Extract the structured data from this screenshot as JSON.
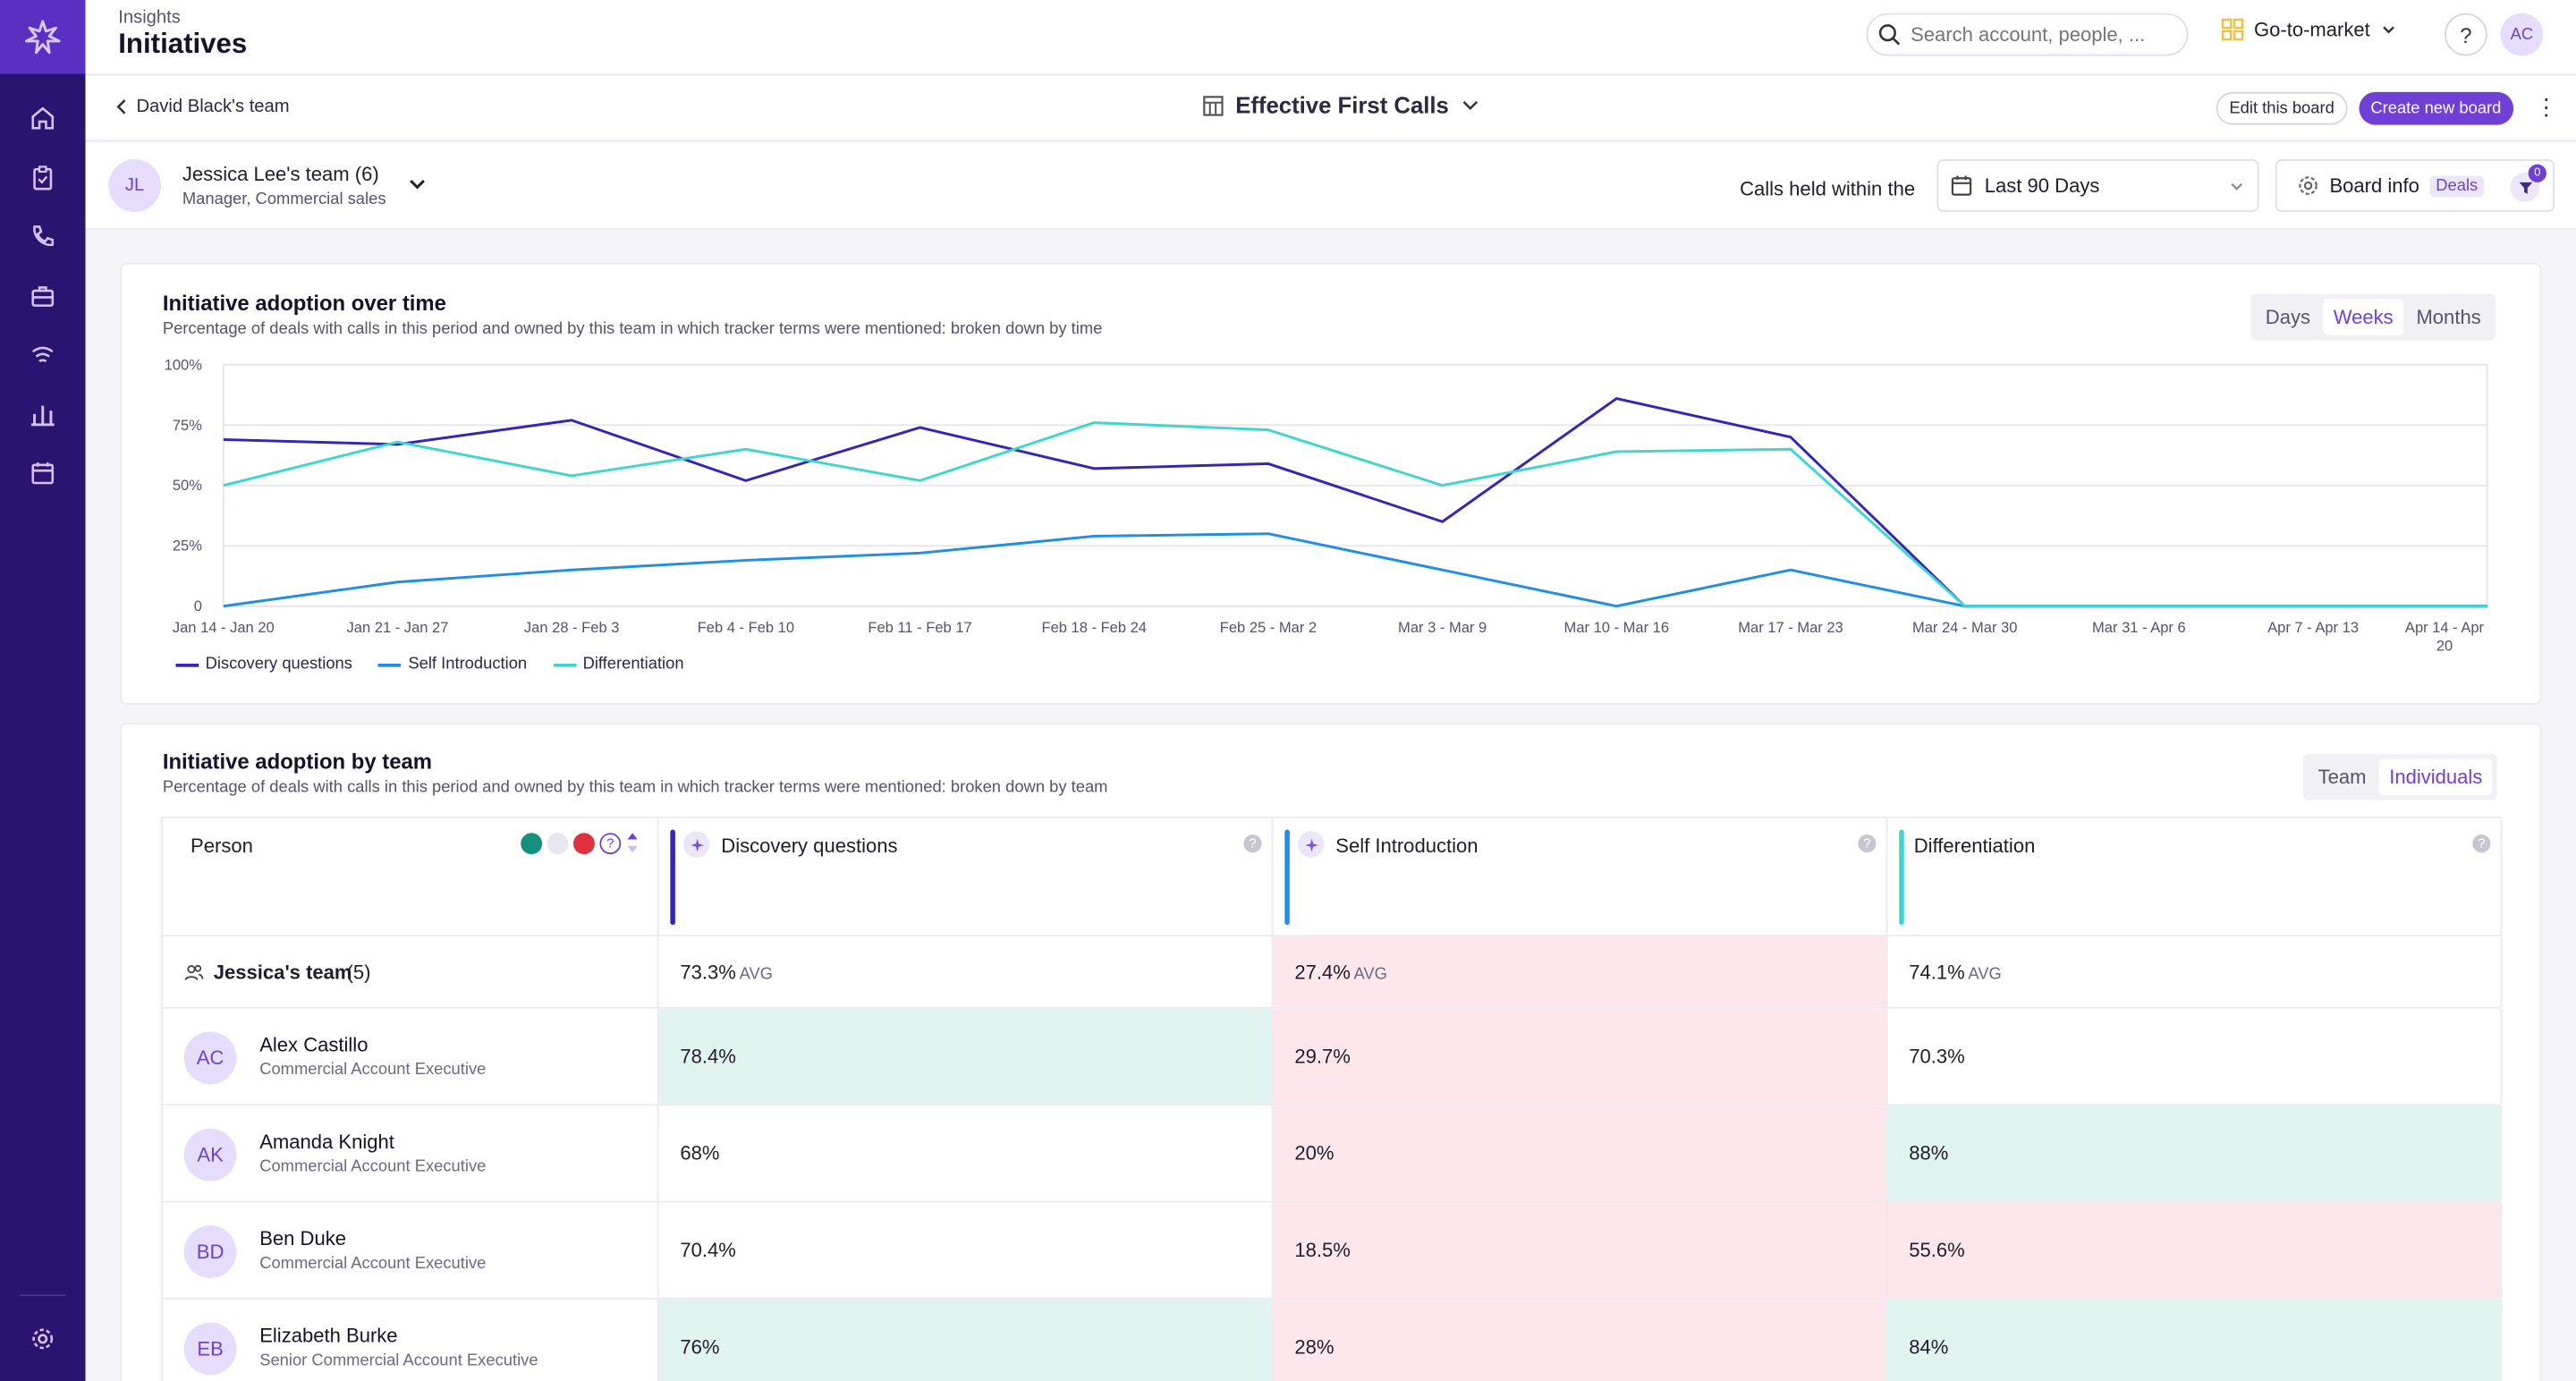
{
  "header": {
    "breadcrumb": "Insights",
    "title": "Initiatives",
    "search_placeholder": "Search account, people, ...",
    "workspace": "Go-to-market",
    "help": "?",
    "user_initials": "AC"
  },
  "sidebar": {
    "items": [
      "home-icon",
      "clipboard-icon",
      "phone-icon",
      "briefcase-icon",
      "signal-icon",
      "bar-chart-icon",
      "calendar-icon"
    ],
    "settings": "gear-icon"
  },
  "boardbar": {
    "back_label": "David Black's team",
    "board_title": "Effective First Calls",
    "edit_label": "Edit this board",
    "create_label": "Create new board"
  },
  "filters": {
    "team_initials": "JL",
    "team_name": "Jessica Lee's team (6)",
    "team_role": "Manager, Commercial sales",
    "calls_label": "Calls held within the",
    "range": "Last 90 Days",
    "board_info": "Board info",
    "deals": "Deals",
    "filter_count": "0"
  },
  "adoption_time": {
    "title": "Initiative adoption over time",
    "subtitle": "Percentage of deals with calls in this period and owned by this team in which tracker terms were mentioned: broken down by time",
    "tabs": [
      "Days",
      "Weeks",
      "Months"
    ],
    "active_tab": "Weeks"
  },
  "chart_data": {
    "type": "line",
    "x": [
      "Jan 14 - Jan 20",
      "Jan 21 - Jan 27",
      "Jan 28 - Feb 3",
      "Feb 4 - Feb 10",
      "Feb 11 - Feb 17",
      "Feb 18 - Feb 24",
      "Feb 25 - Mar 2",
      "Mar 3 - Mar 9",
      "Mar 10 - Mar 16",
      "Mar 17 - Mar 23",
      "Mar 24 - Mar 30",
      "Mar 31 - Apr 6",
      "Apr 7 - Apr 13",
      "Apr 14 - Apr 20"
    ],
    "yticks": [
      "100%",
      "75%",
      "50%",
      "25%",
      "0"
    ],
    "ylim": [
      0,
      100
    ],
    "series": [
      {
        "name": "Discovery questions",
        "color": "#3325b8",
        "values": [
          69,
          67,
          77,
          52,
          74,
          57,
          59,
          35,
          86,
          70,
          0,
          0,
          0,
          0
        ]
      },
      {
        "name": "Self Introduction",
        "color": "#1f8ee6",
        "values": [
          0,
          10,
          15,
          19,
          22,
          29,
          30,
          15,
          0,
          15,
          0,
          0,
          0,
          0
        ]
      },
      {
        "name": "Differentiation",
        "color": "#3fd6cf",
        "values": [
          50,
          68,
          54,
          65,
          52,
          76,
          73,
          50,
          64,
          65,
          0,
          0,
          0,
          0
        ]
      }
    ],
    "grid": true,
    "legend_position": "bottom-left"
  },
  "adoption_team": {
    "title": "Initiative adoption by team",
    "subtitle": "Percentage of deals with calls in this period and owned by this team in which tracker terms were mentioned: broken down by team",
    "tabs": [
      "Team",
      "Individuals"
    ],
    "active_tab": "Individuals",
    "person_header": "Person",
    "columns": [
      {
        "label": "Discovery questions",
        "color": "#3325b8"
      },
      {
        "label": "Self Introduction",
        "color": "#1f8ee6"
      },
      {
        "label": "Differentiation",
        "color": "#3fd6cf"
      }
    ],
    "team_row": {
      "name": "Jessica's team",
      "count": "(5)",
      "values": [
        "73.3%",
        "27.4%",
        "74.1%"
      ],
      "avg": "AVG"
    },
    "rows": [
      {
        "initials": "AC",
        "name": "Alex Castillo",
        "role": "Commercial Account Executive",
        "values": [
          "78.4%",
          "29.7%",
          "70.3%"
        ],
        "status": [
          "green",
          "pink",
          "none"
        ]
      },
      {
        "initials": "AK",
        "name": "Amanda Knight",
        "role": "Commercial Account Executive",
        "values": [
          "68%",
          "20%",
          "88%"
        ],
        "status": [
          "none",
          "pink",
          "green"
        ]
      },
      {
        "initials": "BD",
        "name": "Ben Duke",
        "role": "Commercial Account Executive",
        "values": [
          "70.4%",
          "18.5%",
          "55.6%"
        ],
        "status": [
          "none",
          "pink",
          "pink"
        ]
      },
      {
        "initials": "EB",
        "name": "Elizabeth Burke",
        "role": "Senior Commercial Account Executive",
        "values": [
          "76%",
          "28%",
          "84%"
        ],
        "status": [
          "green",
          "pink",
          "green"
        ]
      }
    ]
  }
}
